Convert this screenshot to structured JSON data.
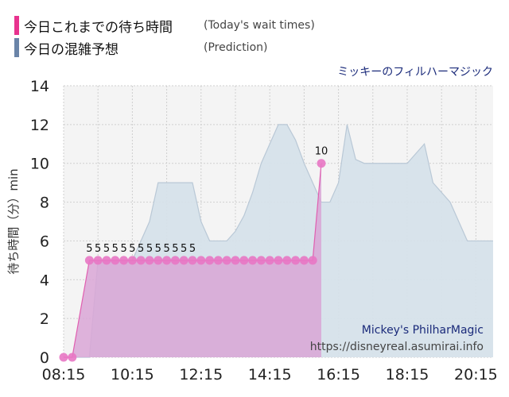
{
  "legend": {
    "today": {
      "label": "今日これまでの待ち時間",
      "sub": "(Today's wait times)",
      "color": "#e8338f"
    },
    "prediction": {
      "label": "今日の混雑予想",
      "sub": "(Prediction)",
      "color": "#6a84a8"
    }
  },
  "attraction_jp": "ミッキーのフィルハーマジック",
  "watermark": {
    "name": "Mickey's PhilharMagic",
    "url": "https://disneyreal.asumirai.info"
  },
  "chart_data": {
    "type": "area",
    "title": "",
    "xlabel": "",
    "ylabel": "待ち時間（分）min",
    "ylim": [
      0,
      14
    ],
    "yticks": [
      0,
      2,
      4,
      6,
      8,
      10,
      12,
      14
    ],
    "xlim": [
      "08:15",
      "20:45"
    ],
    "xticks": [
      "08:15",
      "10:15",
      "12:15",
      "14:15",
      "16:15",
      "18:15",
      "20:15"
    ],
    "grid": true,
    "colors": {
      "today_line": "#e05fb0",
      "today_fill": "#d9a6d6",
      "today_point": "#e877c4",
      "prediction_fill": "#d6e1ea",
      "prediction_line": "#b9c8d6",
      "plot_bg": "#f4f4f4",
      "grid": "#cfcfcf"
    },
    "series": [
      {
        "key": "prediction",
        "x": [
          "08:15",
          "09:00",
          "09:15",
          "10:15",
          "10:30",
          "10:45",
          "11:00",
          "11:15",
          "11:30",
          "11:45",
          "12:00",
          "12:15",
          "12:30",
          "12:45",
          "13:00",
          "13:15",
          "13:30",
          "13:45",
          "14:00",
          "14:15",
          "14:30",
          "14:45",
          "15:00",
          "15:15",
          "15:30",
          "15:45",
          "16:00",
          "16:15",
          "16:30",
          "16:45",
          "17:00",
          "17:15",
          "17:30",
          "17:45",
          "18:00",
          "18:15",
          "18:30",
          "18:45",
          "19:00",
          "19:15",
          "19:30",
          "19:45",
          "20:00",
          "20:15",
          "20:45"
        ],
        "values": [
          0,
          0,
          5,
          5,
          6,
          7,
          9,
          9,
          9,
          9,
          9,
          7,
          6,
          6,
          6,
          6.5,
          7.3,
          8.5,
          10,
          11,
          12,
          12,
          11.2,
          10,
          9,
          8,
          8,
          9,
          12,
          10.2,
          10,
          10,
          10,
          10,
          10,
          10,
          10.5,
          11,
          9,
          8.5,
          8,
          7,
          6,
          6,
          6
        ]
      },
      {
        "key": "today",
        "x": [
          "08:15",
          "08:30",
          "09:00",
          "09:15",
          "09:30",
          "09:45",
          "10:00",
          "10:15",
          "10:30",
          "10:45",
          "11:00",
          "11:15",
          "11:30",
          "11:45",
          "12:00",
          "12:15",
          "12:30",
          "12:45",
          "13:00",
          "13:15",
          "13:30",
          "13:45",
          "14:00",
          "14:15",
          "14:30",
          "14:45",
          "15:00",
          "15:15",
          "15:30",
          "15:45"
        ],
        "values": [
          0,
          0,
          5,
          5,
          5,
          5,
          5,
          5,
          5,
          5,
          5,
          5,
          5,
          5,
          5,
          5,
          5,
          5,
          5,
          5,
          5,
          5,
          5,
          5,
          5,
          5,
          5,
          5,
          5,
          10
        ],
        "points_x": [
          "08:15",
          "08:30",
          "09:00",
          "09:15",
          "09:30",
          "09:45",
          "10:00",
          "10:15",
          "10:30",
          "10:45",
          "11:00",
          "11:15",
          "11:30",
          "11:45",
          "12:00",
          "12:15",
          "12:30",
          "12:45",
          "13:00",
          "13:15",
          "13:30",
          "13:45",
          "14:00",
          "14:15",
          "14:30",
          "14:45",
          "15:00",
          "15:15",
          "15:30",
          "15:45"
        ],
        "points_y": [
          0,
          0,
          5,
          5,
          5,
          5,
          5,
          5,
          5,
          5,
          5,
          5,
          5,
          5,
          5,
          5,
          5,
          5,
          5,
          5,
          5,
          5,
          5,
          5,
          5,
          5,
          5,
          5,
          5,
          10
        ],
        "marker_times": [
          "08:15",
          "08:30",
          "09:00",
          "09:15",
          "09:30",
          "09:45",
          "10:00",
          "10:15",
          "10:30",
          "10:45",
          "11:00",
          "11:15",
          "11:30",
          "11:45",
          "12:00",
          "12:15",
          "12:30",
          "12:45",
          "13:00",
          "13:15",
          "13:30",
          "13:45",
          "14:00",
          "14:15",
          "14:30",
          "14:45",
          "15:00",
          "15:15",
          "15:30",
          "15:45"
        ],
        "markers": [
          {
            "t": "08:15",
            "v": 0
          },
          {
            "t": "08:30",
            "v": 0
          },
          {
            "t": "09:00",
            "v": 5
          },
          {
            "t": "09:15",
            "v": 5
          },
          {
            "t": "09:30",
            "v": 5
          },
          {
            "t": "09:45",
            "v": 5
          },
          {
            "t": "10:00",
            "v": 5
          },
          {
            "t": "10:15",
            "v": 5
          },
          {
            "t": "10:30",
            "v": 5
          },
          {
            "t": "10:45",
            "v": 5
          },
          {
            "t": "11:00",
            "v": 5
          },
          {
            "t": "11:15",
            "v": 5
          },
          {
            "t": "11:30",
            "v": 5
          },
          {
            "t": "11:45",
            "v": 5
          },
          {
            "t": "15:45",
            "v": 10
          }
        ],
        "labels": [
          {
            "t": "09:00",
            "text": "5"
          },
          {
            "t": "09:15",
            "text": "5"
          },
          {
            "t": "09:30",
            "text": "5"
          },
          {
            "t": "09:45",
            "text": "5"
          },
          {
            "t": "10:00",
            "text": "5"
          },
          {
            "t": "10:15",
            "text": "5"
          },
          {
            "t": "10:30",
            "text": "5"
          },
          {
            "t": "10:45",
            "text": "5"
          },
          {
            "t": "11:00",
            "text": "5"
          },
          {
            "t": "11:15",
            "text": "5"
          },
          {
            "t": "11:30",
            "text": "5"
          },
          {
            "t": "11:45",
            "text": "5"
          },
          {
            "t": "12:00",
            "text": "5"
          },
          {
            "t": "15:45",
            "text": "10"
          }
        ]
      }
    ]
  }
}
